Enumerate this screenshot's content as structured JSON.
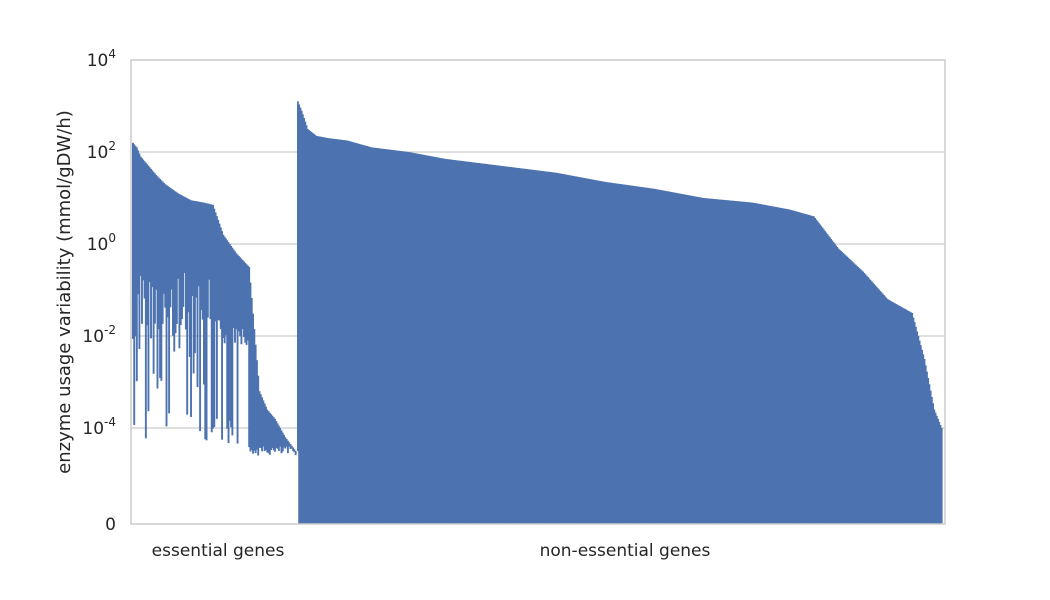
{
  "chart_data": {
    "type": "area",
    "title": "",
    "xlabel": "",
    "ylabel": "enzyme usage variability (mmol/gDW/h)",
    "yscale": "symlog",
    "ylim": [
      0,
      10000
    ],
    "yticks": [
      {
        "base": "0",
        "exp": ""
      },
      {
        "base": "10",
        "exp": "-4"
      },
      {
        "base": "10",
        "exp": "-2"
      },
      {
        "base": "10",
        "exp": "0"
      },
      {
        "base": "10",
        "exp": "2"
      },
      {
        "base": "10",
        "exp": "4"
      }
    ],
    "grid": true,
    "groups": [
      {
        "label": "essential genes"
      },
      {
        "label": "non-essential genes"
      }
    ],
    "color": "#4c72b0",
    "series": [
      {
        "group": "essential genes",
        "description_points_log10": [
          [
            0,
            2.2
          ],
          [
            3,
            2.1
          ],
          [
            6,
            1.9
          ],
          [
            12,
            1.7
          ],
          [
            18,
            1.5
          ],
          [
            25,
            1.3
          ],
          [
            35,
            1.1
          ],
          [
            45,
            0.95
          ],
          [
            55,
            0.9
          ],
          [
            62,
            0.85
          ],
          [
            70,
            0.2
          ],
          [
            80,
            -0.2
          ],
          [
            90,
            -0.5
          ],
          [
            98,
            -3.2
          ],
          [
            104,
            -3.6
          ],
          [
            110,
            -3.8
          ],
          [
            118,
            -4.2
          ],
          [
            126,
            -4.5
          ]
        ]
      },
      {
        "group": "non-essential genes",
        "description_points_log10": [
          [
            0,
            3.1
          ],
          [
            3,
            2.9
          ],
          [
            8,
            2.5
          ],
          [
            15,
            2.35
          ],
          [
            25,
            2.3
          ],
          [
            40,
            2.25
          ],
          [
            60,
            2.1
          ],
          [
            90,
            2.0
          ],
          [
            120,
            1.85
          ],
          [
            150,
            1.75
          ],
          [
            180,
            1.65
          ],
          [
            210,
            1.55
          ],
          [
            250,
            1.35
          ],
          [
            290,
            1.2
          ],
          [
            330,
            1.0
          ],
          [
            370,
            0.9
          ],
          [
            400,
            0.75
          ],
          [
            420,
            0.6
          ],
          [
            440,
            -0.1
          ],
          [
            460,
            -0.6
          ],
          [
            480,
            -1.2
          ],
          [
            500,
            -1.5
          ],
          [
            510,
            -2.5
          ],
          [
            518,
            -3.6
          ],
          [
            524,
            -4.0
          ]
        ]
      }
    ]
  }
}
